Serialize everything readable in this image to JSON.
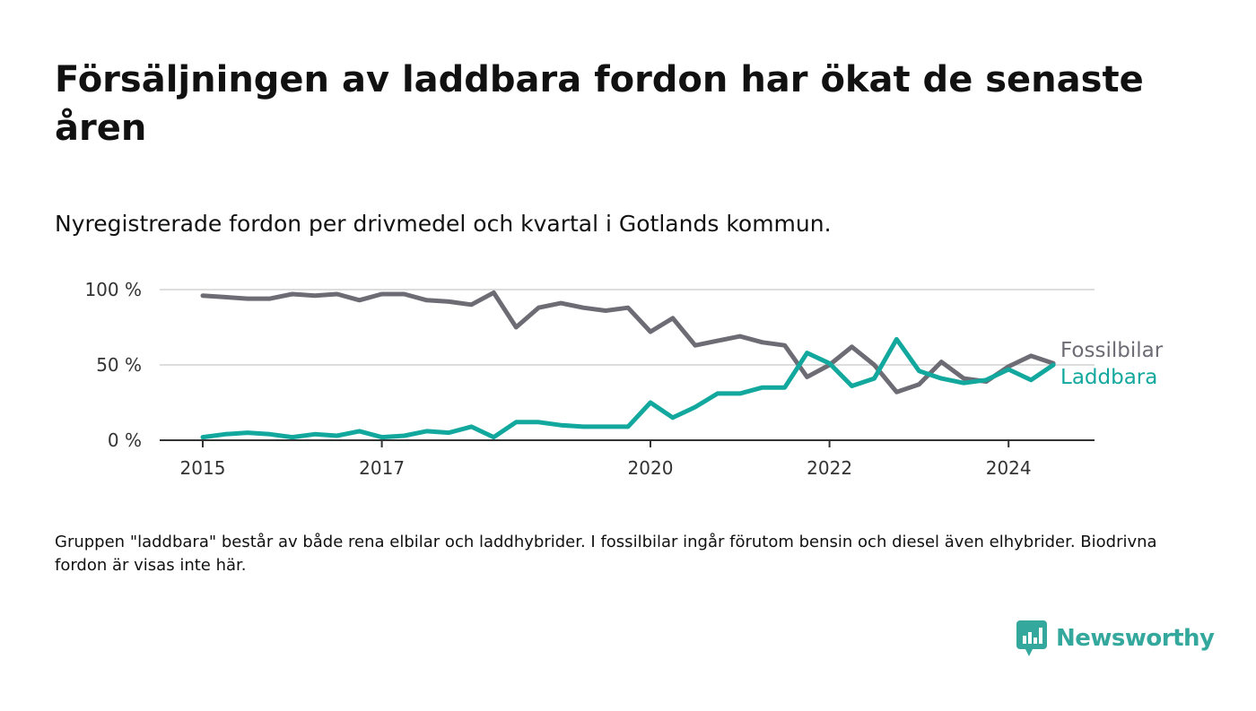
{
  "title": "Försäljningen av laddbara fordon har ökat de senaste åren",
  "subtitle": "Nyregistrerade fordon per drivmedel och kvartal i Gotlands kommun.",
  "note": "Gruppen \"laddbara\" består av både rena elbilar och laddhybrider. I fossilbilar ingår förutom bensin och diesel även elhybrider. Biodrivna fordon är visas inte här.",
  "logo": {
    "text": "Newsworthy",
    "icon": "newsworthy-bar-chart-icon",
    "color": "#35a89e"
  },
  "chart_data": {
    "type": "line",
    "x_unit": "quarter",
    "x_start": "2015 Q1",
    "x": [
      "2015 Q1",
      "2015 Q2",
      "2015 Q3",
      "2015 Q4",
      "2016 Q1",
      "2016 Q2",
      "2016 Q3",
      "2016 Q4",
      "2017 Q1",
      "2017 Q2",
      "2017 Q3",
      "2017 Q4",
      "2018 Q1",
      "2018 Q2",
      "2018 Q3",
      "2018 Q4",
      "2019 Q1",
      "2019 Q2",
      "2019 Q3",
      "2019 Q4",
      "2020 Q1",
      "2020 Q2",
      "2020 Q3",
      "2020 Q4",
      "2021 Q1",
      "2021 Q2",
      "2021 Q3",
      "2021 Q4",
      "2022 Q1",
      "2022 Q2",
      "2022 Q3",
      "2022 Q4",
      "2023 Q1",
      "2023 Q2",
      "2023 Q3",
      "2023 Q4",
      "2024 Q1",
      "2024 Q2",
      "2024 Q3"
    ],
    "x_ticks": [
      "2015",
      "2017",
      "2020",
      "2022",
      "2024"
    ],
    "y_ticks": [
      "0 %",
      "50 %",
      "100 %"
    ],
    "ylim": [
      0,
      100
    ],
    "grid": true,
    "series": [
      {
        "name": "Fossilbilar",
        "color": "#6d6c75",
        "values": [
          96,
          95,
          94,
          94,
          97,
          96,
          97,
          93,
          97,
          97,
          93,
          92,
          90,
          98,
          75,
          88,
          91,
          88,
          86,
          88,
          72,
          81,
          63,
          66,
          69,
          65,
          63,
          42,
          50,
          62,
          50,
          32,
          37,
          52,
          41,
          39,
          49,
          56,
          51
        ]
      },
      {
        "name": "Laddbara",
        "color": "#13a89e",
        "values": [
          2,
          4,
          5,
          4,
          2,
          4,
          3,
          6,
          2,
          3,
          6,
          5,
          9,
          2,
          12,
          12,
          10,
          9,
          9,
          9,
          25,
          15,
          22,
          31,
          31,
          35,
          35,
          58,
          51,
          36,
          41,
          67,
          46,
          41,
          38,
          40,
          47,
          40,
          50
        ]
      }
    ]
  }
}
